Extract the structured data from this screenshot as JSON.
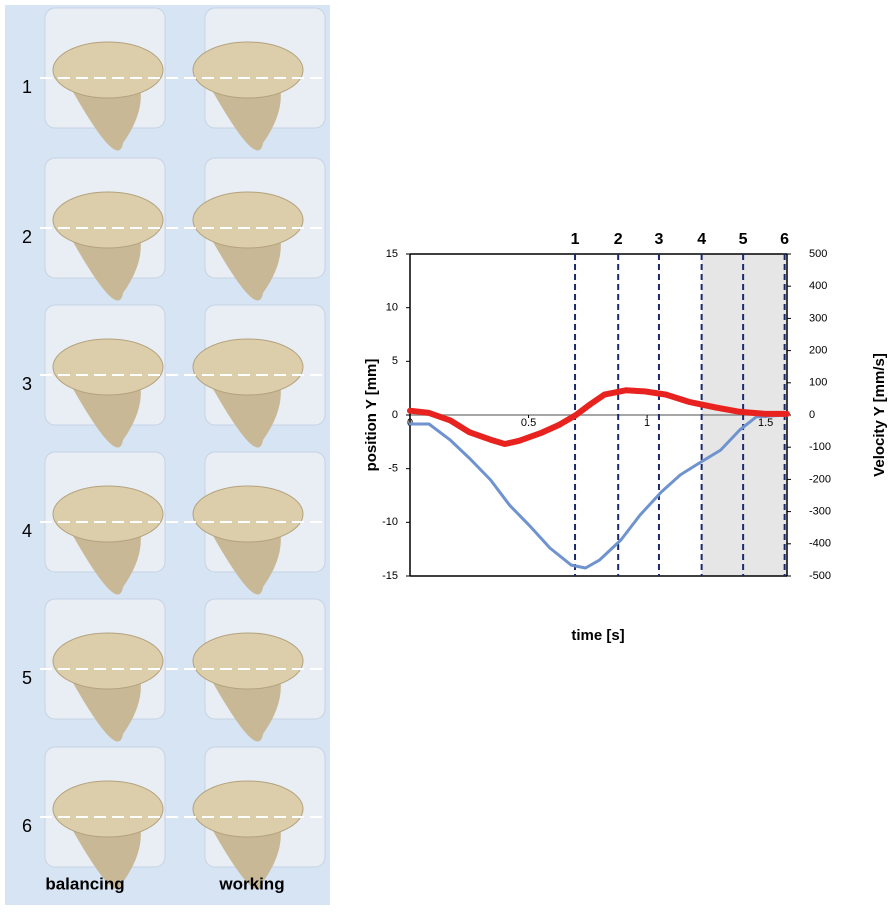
{
  "image_panel": {
    "rows": [
      "1",
      "2",
      "3",
      "4",
      "5",
      "6"
    ],
    "columns": [
      "balancing",
      "working"
    ]
  },
  "chart_data": {
    "type": "line",
    "xlabel": "time [s]",
    "ylabel": "position Y [mm]",
    "y2label": "Velocity Y [mm/s]",
    "xlim": [
      0,
      1.59
    ],
    "xticks": [
      0,
      0.5,
      1,
      1.5
    ],
    "ylim": [
      -15,
      15
    ],
    "yticks": [
      -15,
      -10,
      -5,
      0,
      5,
      10,
      15
    ],
    "y2lim": [
      -500,
      500
    ],
    "y2ticks": [
      -500,
      -400,
      -300,
      -200,
      -100,
      0,
      100,
      200,
      300,
      400,
      500
    ],
    "markers": [
      {
        "label": "1",
        "x": 0.696
      },
      {
        "label": "2",
        "x": 0.878
      },
      {
        "label": "3",
        "x": 1.05
      },
      {
        "label": "4",
        "x": 1.23
      },
      {
        "label": "5",
        "x": 1.405
      },
      {
        "label": "6",
        "x": 1.58
      }
    ],
    "shaded_region": [
      1.23,
      1.59
    ],
    "series": [
      {
        "color": "#e8231f",
        "axis": "y",
        "x": [
          0,
          0.08,
          0.17,
          0.25,
          0.34,
          0.4,
          0.46,
          0.55,
          0.63,
          0.7,
          0.76,
          0.82,
          0.91,
          0.99,
          1.08,
          1.18,
          1.29,
          1.39,
          1.5,
          1.59
        ],
        "values": [
          0.4,
          0.2,
          -0.5,
          -1.6,
          -2.3,
          -2.7,
          -2.4,
          -1.7,
          -0.9,
          0,
          1.0,
          1.9,
          2.3,
          2.2,
          1.9,
          1.2,
          0.7,
          0.3,
          0.1,
          0.1
        ]
      },
      {
        "color": "#6f93cf",
        "axis": "y2",
        "x": [
          0,
          0.08,
          0.17,
          0.25,
          0.34,
          0.42,
          0.51,
          0.59,
          0.68,
          0.74,
          0.8,
          0.89,
          0.97,
          1.06,
          1.14,
          1.22,
          1.31,
          1.39,
          1.46,
          1.59
        ],
        "values": [
          -28,
          -28,
          -78,
          -134,
          -202,
          -280,
          -348,
          -413,
          -466,
          -475,
          -450,
          -388,
          -311,
          -239,
          -186,
          -149,
          -109,
          -47,
          -6,
          0
        ]
      }
    ]
  }
}
